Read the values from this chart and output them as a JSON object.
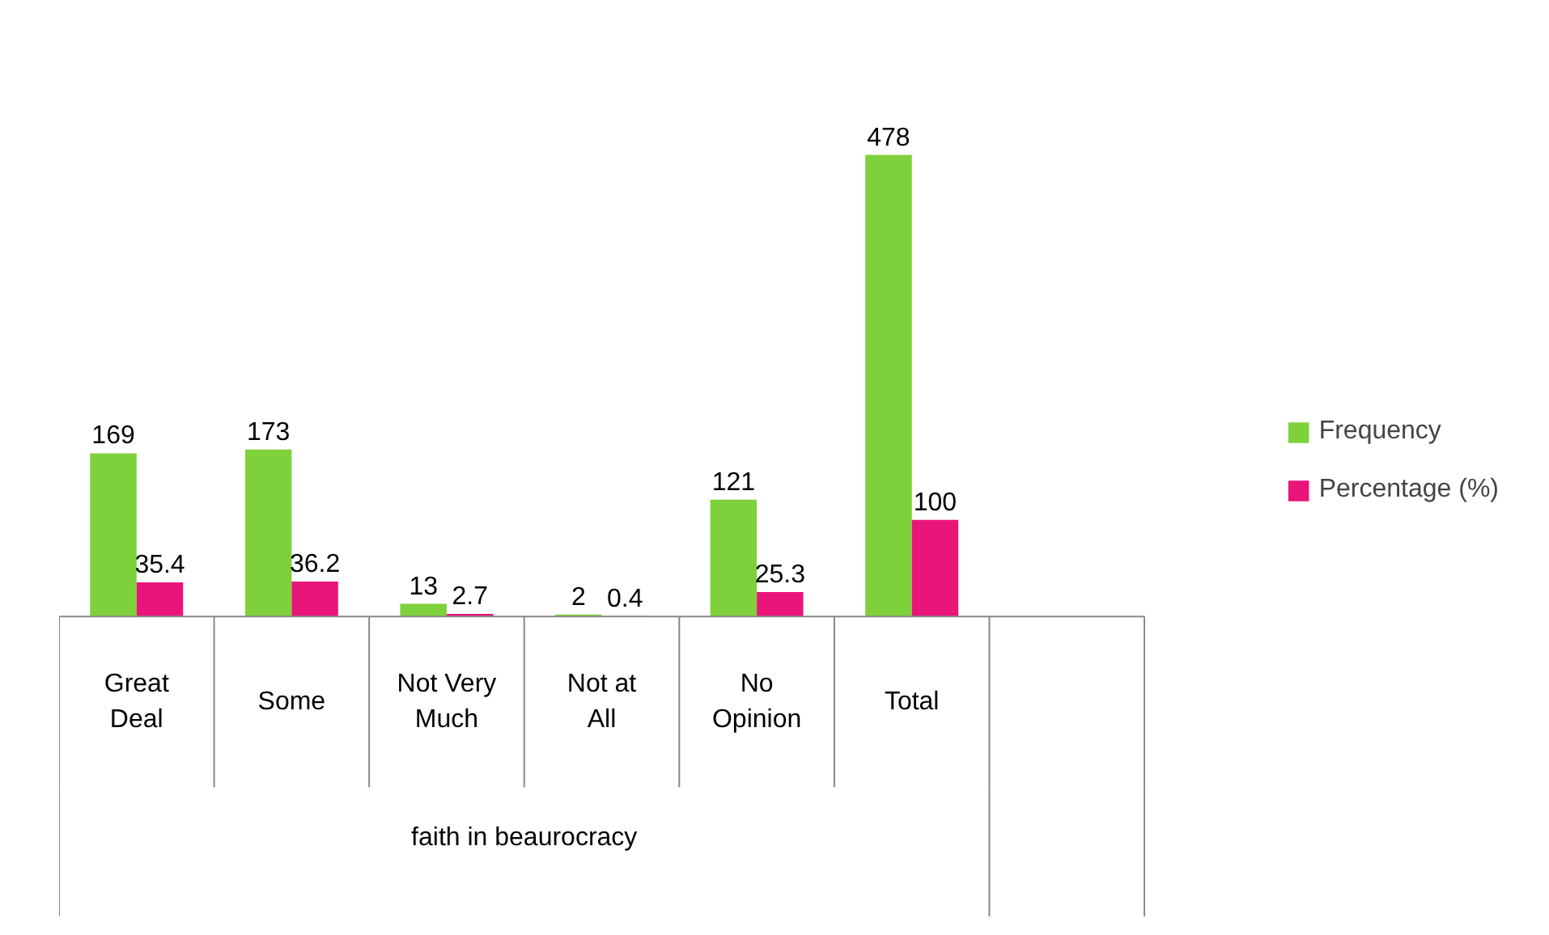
{
  "chart_data": {
    "type": "bar",
    "xlabel": "faith in beaurocracy",
    "categories": [
      "Great Deal",
      "Some",
      "Not Very Much",
      "Not at All",
      "No Opinion",
      "Total",
      null
    ],
    "series": [
      {
        "name": "Frequency",
        "color": "#7fd13b",
        "values": [
          169,
          173,
          13,
          2,
          121,
          478,
          null
        ]
      },
      {
        "name": "Percentage (%)",
        "color": "#ea157a",
        "values": [
          35.4,
          36.2,
          2.7,
          0.4,
          25.3,
          100,
          null
        ]
      }
    ],
    "data_labels": true,
    "legend": "right",
    "grid": false
  }
}
